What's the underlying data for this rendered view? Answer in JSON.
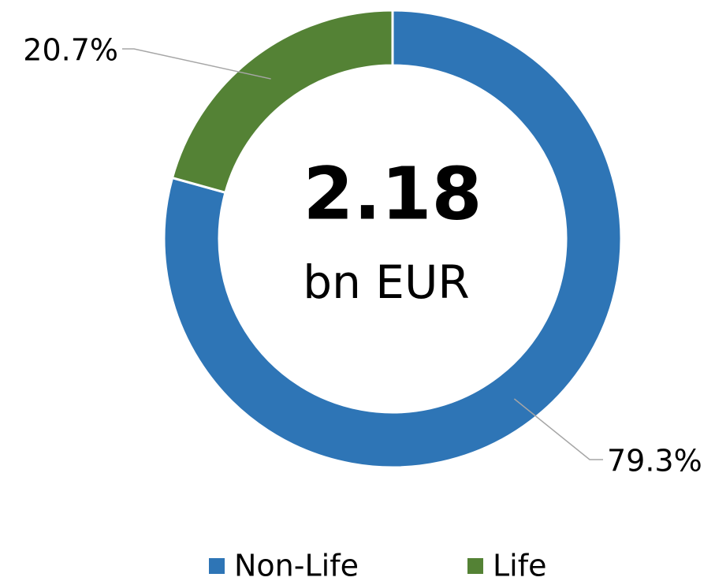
{
  "chart_data": {
    "type": "donut",
    "center_value": "2.18",
    "center_unit": "bn EUR",
    "categories": [
      "Non-Life",
      "Life"
    ],
    "values": [
      79.3,
      20.7
    ],
    "value_labels": [
      "79.3%",
      "20.7%"
    ],
    "colors": [
      "#2e75b6",
      "#548235"
    ],
    "legend": "bottom"
  }
}
